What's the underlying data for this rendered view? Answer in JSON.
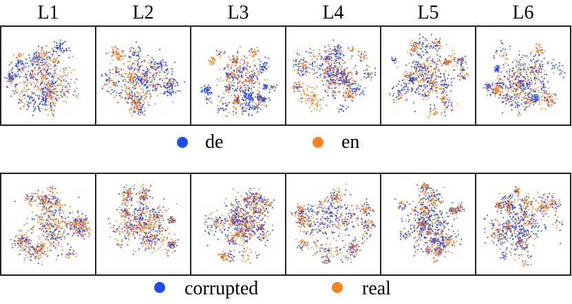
{
  "colors": {
    "de": "#1f4cf5",
    "en": "#f6831f",
    "corrupted": "#1f4cf5",
    "real": "#f6831f",
    "frame": "#222222"
  },
  "chart_data": [
    {
      "type": "scatter",
      "description_kind": "t-SNE embedding by layer",
      "panels": [
        "L1",
        "L2",
        "L3",
        "L4",
        "L5",
        "L6"
      ],
      "legend": [
        {
          "name": "de",
          "color": "#1f4cf5"
        },
        {
          "name": "en",
          "color": "#f6831f"
        }
      ],
      "legend_placement": "bottom",
      "grid": false
    },
    {
      "type": "scatter",
      "description_kind": "t-SNE embedding by layer",
      "panels": [
        "L1",
        "L2",
        "L3",
        "L4",
        "L5",
        "L6"
      ],
      "legend": [
        {
          "name": "corrupted",
          "color": "#1f4cf5"
        },
        {
          "name": "real",
          "color": "#f6831f"
        }
      ],
      "legend_placement": "bottom",
      "grid": false
    }
  ]
}
